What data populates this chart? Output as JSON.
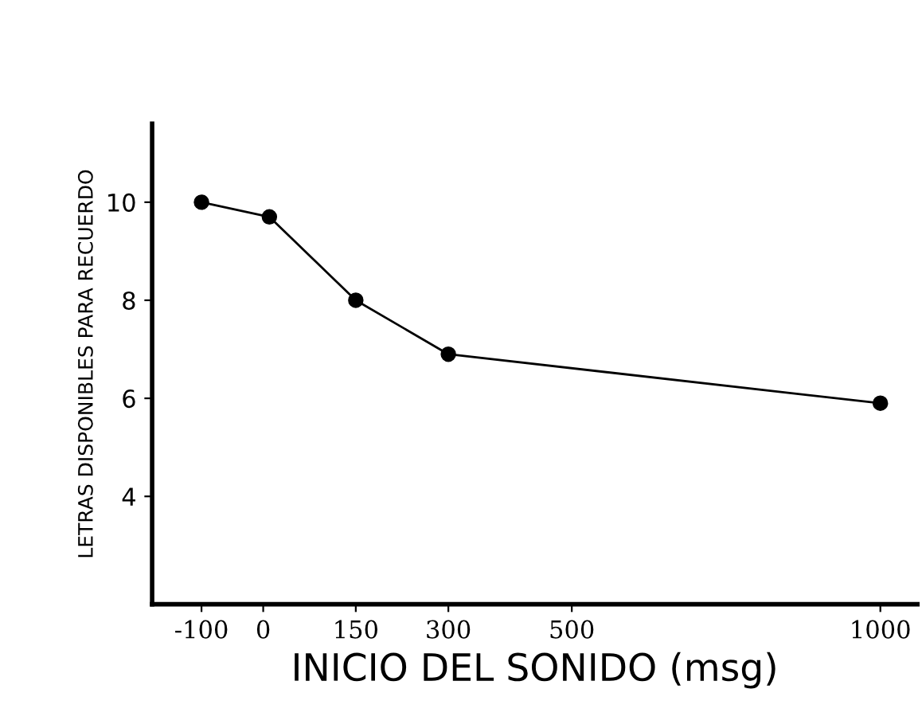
{
  "chart_data": {
    "type": "line",
    "xlabel": "INICIO DEL SONIDO (msg)",
    "ylabel": "LETRAS DISPONIBLES PARA RECUERDO",
    "x": [
      -100,
      10,
      150,
      300,
      1000
    ],
    "series": [
      {
        "color": "#000000",
        "values": [
          10.0,
          9.7,
          8.0,
          6.9,
          5.9
        ]
      }
    ],
    "xlim": [
      -180,
      1060
    ],
    "xticks": [
      -100,
      0,
      150,
      300,
      500,
      1000
    ],
    "ylim": [
      1.8,
      11.6
    ],
    "yticks": [
      4,
      6,
      8,
      10
    ],
    "marker": "circle",
    "line_style": "solid",
    "grid": false,
    "legend": false
  }
}
